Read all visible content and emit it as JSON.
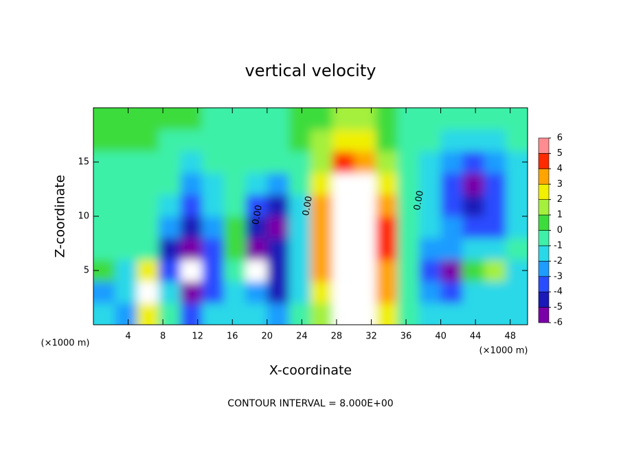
{
  "chart_data": {
    "type": "heatmap",
    "title": "vertical velocity",
    "x_label": "X-coordinate",
    "y_label": "Z-coordinate",
    "x_unit_left": "(×1000 m)",
    "x_unit_right": "(×1000 m)",
    "footnote": "CONTOUR INTERVAL = 8.000E+00",
    "contour_labels": [
      "0.00",
      "0.00",
      "0.00"
    ],
    "xlim": [
      0,
      50
    ],
    "ylim": [
      0,
      20
    ],
    "xticks": [
      4,
      8,
      12,
      16,
      20,
      24,
      28,
      32,
      36,
      40,
      44,
      48
    ],
    "yticks": [
      5,
      10,
      15
    ],
    "x": [
      1.25,
      3.75,
      6.25,
      8.75,
      11.25,
      13.75,
      16.25,
      18.75,
      21.25,
      23.75,
      26.25,
      28.75,
      31.25,
      33.75,
      36.25,
      38.75,
      41.25,
      43.75,
      46.25,
      48.75
    ],
    "y": [
      1,
      3,
      5,
      7,
      9,
      11,
      13,
      15,
      17,
      19
    ],
    "values": [
      [
        -1,
        -2,
        3,
        0,
        -3,
        -1,
        -1,
        -1,
        -2,
        0,
        2,
        8,
        10,
        3,
        0,
        -1,
        -1,
        -1,
        -1,
        -1
      ],
      [
        -2,
        -1,
        7,
        -1,
        -6,
        -3,
        -1,
        -2,
        -4,
        -1,
        3,
        12,
        13,
        4,
        0,
        -2,
        -3,
        -1,
        -1,
        -1
      ],
      [
        1,
        -1,
        3,
        -3,
        -7,
        -3,
        0,
        -7,
        -4,
        -1,
        4,
        14,
        17,
        4,
        0,
        -3,
        -5,
        1,
        2,
        -1
      ],
      [
        0,
        0,
        0,
        -4,
        -6,
        -3,
        1,
        -6,
        -4,
        -1,
        4,
        14,
        17,
        5,
        0,
        -2,
        -2,
        -1,
        -1,
        0
      ],
      [
        0,
        0,
        0,
        -2,
        -4,
        -2,
        1,
        -4,
        -5,
        -1,
        4,
        13,
        13,
        5,
        0,
        -1,
        -2,
        -3,
        -3,
        -1
      ],
      [
        0,
        0,
        0,
        -1,
        -3,
        -1,
        0,
        -3,
        -4,
        -1,
        4,
        12,
        11,
        4,
        0,
        -1,
        -3,
        -4,
        -3,
        -1
      ],
      [
        0,
        0,
        0,
        0,
        -2,
        -1,
        0,
        -1,
        -2,
        0,
        3,
        8,
        7,
        3,
        0,
        -1,
        -3,
        -5,
        -3,
        -1
      ],
      [
        0,
        0,
        0,
        0,
        -1,
        0,
        0,
        0,
        0,
        0,
        2,
        5,
        4,
        2,
        0,
        -1,
        -2,
        -3,
        -2,
        -1
      ],
      [
        1,
        1,
        1,
        0,
        0,
        0,
        0,
        0,
        0,
        1,
        2,
        3,
        3,
        1,
        0,
        0,
        -1,
        -1,
        -1,
        0
      ],
      [
        1,
        1,
        1,
        1,
        1,
        0,
        0,
        0,
        0,
        1,
        1,
        2,
        2,
        1,
        0,
        0,
        0,
        0,
        0,
        0
      ]
    ],
    "colorbar_ticks": [
      -6,
      -5,
      -4,
      -3,
      -2,
      -1,
      0,
      1,
      2,
      3,
      4,
      5,
      6
    ],
    "colors": [
      "#7a00a8",
      "#1a1ab8",
      "#2a4cff",
      "#1e9cff",
      "#2ad8e8",
      "#3ef0a8",
      "#3cdc3c",
      "#a4f03c",
      "#f0f000",
      "#ffa400",
      "#ff2a00",
      "#ff8c90"
    ],
    "out_of_range_color": "#ffffff"
  }
}
